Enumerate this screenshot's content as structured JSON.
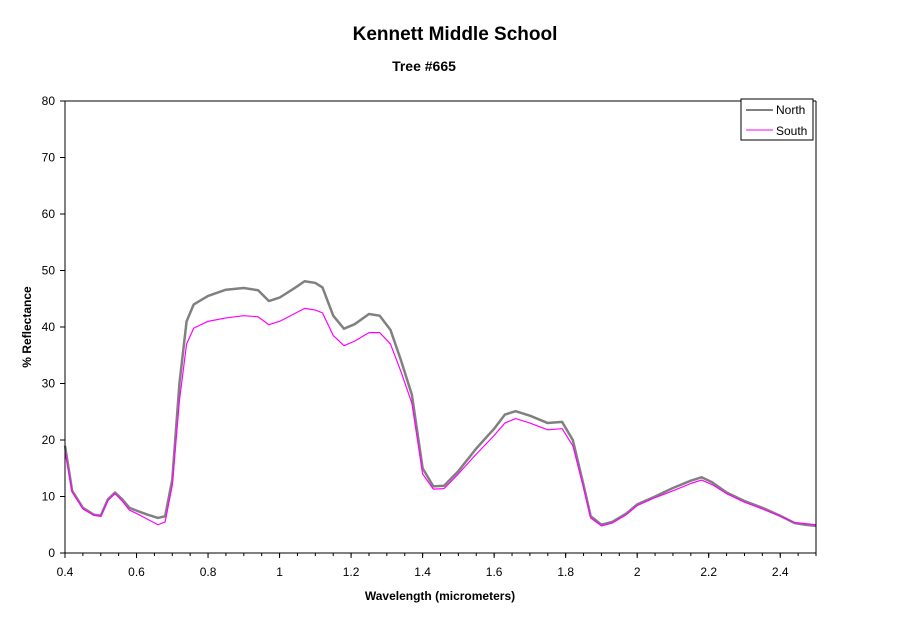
{
  "chart_data": {
    "type": "line",
    "title": "Kennett Middle School",
    "subtitle": "Tree #665",
    "xlabel": "Wavelength (micrometers)",
    "ylabel": "% Reflectance",
    "xlim": [
      0.4,
      2.5
    ],
    "ylim": [
      0,
      80
    ],
    "x_ticks": [
      "0.4",
      "0.6",
      "0.8",
      "1",
      "1.2",
      "1.4",
      "1.6",
      "1.8",
      "2",
      "2.2",
      "2.4"
    ],
    "y_ticks": [
      "0",
      "10",
      "20",
      "30",
      "40",
      "50",
      "60",
      "70",
      "80"
    ],
    "grid": false,
    "legend_position": "top-right",
    "series": [
      {
        "name": "North",
        "color": "#808080",
        "points": [
          [
            0.4,
            19.0
          ],
          [
            0.42,
            11.0
          ],
          [
            0.45,
            8.0
          ],
          [
            0.48,
            6.8
          ],
          [
            0.5,
            6.6
          ],
          [
            0.52,
            9.5
          ],
          [
            0.54,
            10.7
          ],
          [
            0.56,
            9.5
          ],
          [
            0.58,
            8.0
          ],
          [
            0.6,
            7.5
          ],
          [
            0.63,
            6.8
          ],
          [
            0.66,
            6.2
          ],
          [
            0.68,
            6.5
          ],
          [
            0.7,
            13.0
          ],
          [
            0.72,
            30.0
          ],
          [
            0.74,
            41.0
          ],
          [
            0.76,
            44.0
          ],
          [
            0.8,
            45.5
          ],
          [
            0.85,
            46.6
          ],
          [
            0.9,
            46.9
          ],
          [
            0.94,
            46.5
          ],
          [
            0.97,
            44.6
          ],
          [
            1.0,
            45.2
          ],
          [
            1.04,
            46.8
          ],
          [
            1.07,
            48.1
          ],
          [
            1.1,
            47.8
          ],
          [
            1.12,
            47.0
          ],
          [
            1.15,
            42.0
          ],
          [
            1.18,
            39.7
          ],
          [
            1.21,
            40.5
          ],
          [
            1.25,
            42.3
          ],
          [
            1.28,
            42.0
          ],
          [
            1.31,
            39.5
          ],
          [
            1.34,
            34.0
          ],
          [
            1.37,
            28.0
          ],
          [
            1.4,
            15.0
          ],
          [
            1.43,
            11.8
          ],
          [
            1.46,
            11.9
          ],
          [
            1.5,
            14.5
          ],
          [
            1.55,
            18.5
          ],
          [
            1.6,
            22.0
          ],
          [
            1.63,
            24.5
          ],
          [
            1.66,
            25.1
          ],
          [
            1.7,
            24.3
          ],
          [
            1.75,
            23.0
          ],
          [
            1.79,
            23.2
          ],
          [
            1.82,
            20.0
          ],
          [
            1.85,
            12.0
          ],
          [
            1.87,
            6.5
          ],
          [
            1.9,
            5.0
          ],
          [
            1.93,
            5.5
          ],
          [
            1.97,
            7.0
          ],
          [
            2.0,
            8.6
          ],
          [
            2.05,
            10.0
          ],
          [
            2.1,
            11.5
          ],
          [
            2.15,
            12.8
          ],
          [
            2.18,
            13.4
          ],
          [
            2.21,
            12.5
          ],
          [
            2.25,
            10.7
          ],
          [
            2.3,
            9.2
          ],
          [
            2.35,
            8.0
          ],
          [
            2.4,
            6.6
          ],
          [
            2.44,
            5.3
          ],
          [
            2.47,
            5.0
          ],
          [
            2.5,
            4.8
          ]
        ]
      },
      {
        "name": "South",
        "color": "#ff00ff",
        "points": [
          [
            0.4,
            18.0
          ],
          [
            0.42,
            10.8
          ],
          [
            0.45,
            7.8
          ],
          [
            0.48,
            6.7
          ],
          [
            0.5,
            6.5
          ],
          [
            0.52,
            9.3
          ],
          [
            0.54,
            10.5
          ],
          [
            0.56,
            9.2
          ],
          [
            0.58,
            7.6
          ],
          [
            0.6,
            7.0
          ],
          [
            0.63,
            6.0
          ],
          [
            0.66,
            5.0
          ],
          [
            0.68,
            5.5
          ],
          [
            0.7,
            12.0
          ],
          [
            0.72,
            27.0
          ],
          [
            0.74,
            37.0
          ],
          [
            0.76,
            39.8
          ],
          [
            0.8,
            41.0
          ],
          [
            0.85,
            41.6
          ],
          [
            0.9,
            42.0
          ],
          [
            0.94,
            41.8
          ],
          [
            0.97,
            40.4
          ],
          [
            1.0,
            41.0
          ],
          [
            1.04,
            42.3
          ],
          [
            1.07,
            43.3
          ],
          [
            1.1,
            43.0
          ],
          [
            1.12,
            42.5
          ],
          [
            1.15,
            38.5
          ],
          [
            1.18,
            36.7
          ],
          [
            1.21,
            37.5
          ],
          [
            1.25,
            39.0
          ],
          [
            1.28,
            39.0
          ],
          [
            1.31,
            37.0
          ],
          [
            1.34,
            32.0
          ],
          [
            1.37,
            26.5
          ],
          [
            1.4,
            14.0
          ],
          [
            1.43,
            11.3
          ],
          [
            1.46,
            11.4
          ],
          [
            1.5,
            14.0
          ],
          [
            1.55,
            17.5
          ],
          [
            1.6,
            20.8
          ],
          [
            1.63,
            23.0
          ],
          [
            1.66,
            23.8
          ],
          [
            1.7,
            23.0
          ],
          [
            1.75,
            21.8
          ],
          [
            1.79,
            22.0
          ],
          [
            1.82,
            19.0
          ],
          [
            1.85,
            11.5
          ],
          [
            1.87,
            6.2
          ],
          [
            1.9,
            4.8
          ],
          [
            1.93,
            5.3
          ],
          [
            1.97,
            6.8
          ],
          [
            2.0,
            8.4
          ],
          [
            2.05,
            9.8
          ],
          [
            2.1,
            11.0
          ],
          [
            2.15,
            12.3
          ],
          [
            2.18,
            12.9
          ],
          [
            2.21,
            12.1
          ],
          [
            2.25,
            10.5
          ],
          [
            2.3,
            9.0
          ],
          [
            2.35,
            7.8
          ],
          [
            2.4,
            6.5
          ],
          [
            2.44,
            5.4
          ],
          [
            2.47,
            5.2
          ],
          [
            2.5,
            5.0
          ]
        ]
      }
    ]
  }
}
